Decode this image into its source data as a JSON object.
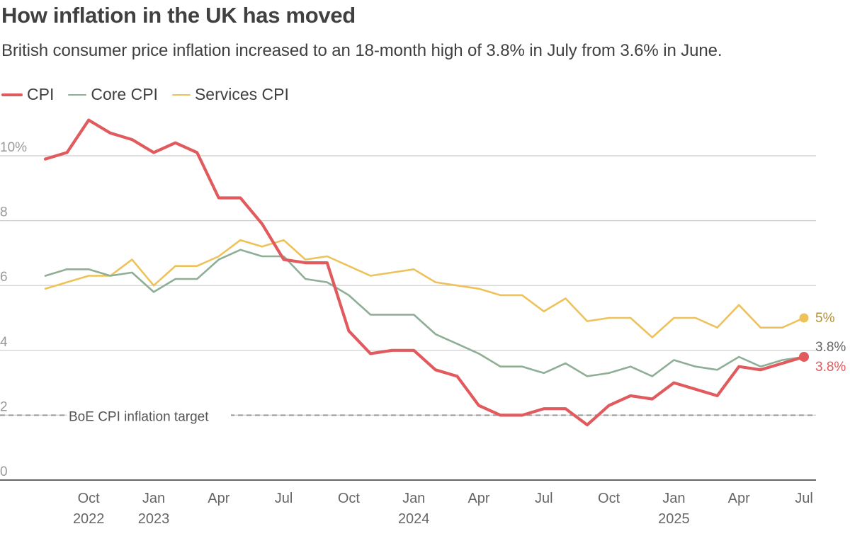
{
  "header": {
    "title": "How inflation in the UK has moved",
    "subtitle": "British consumer price inflation increased to an 18-month high of 3.8% in July from 3.6% in June."
  },
  "chart_data": {
    "type": "line",
    "title": "How inflation in the UK has moved",
    "xlabel": "",
    "ylabel": "",
    "ylim": [
      0,
      10
    ],
    "yticks": [
      0,
      2,
      4,
      6,
      8,
      10
    ],
    "ytick_labels": [
      "0",
      "2",
      "4",
      "6",
      "8",
      "10%"
    ],
    "x": [
      "2022-08",
      "2022-09",
      "2022-10",
      "2022-11",
      "2022-12",
      "2023-01",
      "2023-02",
      "2023-03",
      "2023-04",
      "2023-05",
      "2023-06",
      "2023-07",
      "2023-08",
      "2023-09",
      "2023-10",
      "2023-11",
      "2023-12",
      "2024-01",
      "2024-02",
      "2024-03",
      "2024-04",
      "2024-05",
      "2024-06",
      "2024-07",
      "2024-08",
      "2024-09",
      "2024-10",
      "2024-11",
      "2024-12",
      "2025-01",
      "2025-02",
      "2025-03",
      "2025-04",
      "2025-05",
      "2025-06",
      "2025-07"
    ],
    "x_tick_index": [
      2,
      5,
      8,
      11,
      14,
      17,
      20,
      23,
      26,
      29,
      32,
      35
    ],
    "x_tick_labels": [
      {
        "month": "Oct",
        "year": "2022"
      },
      {
        "month": "Jan",
        "year": "2023"
      },
      {
        "month": "Apr",
        "year": ""
      },
      {
        "month": "Jul",
        "year": ""
      },
      {
        "month": "Oct",
        "year": ""
      },
      {
        "month": "Jan",
        "year": "2024"
      },
      {
        "month": "Apr",
        "year": ""
      },
      {
        "month": "Jul",
        "year": ""
      },
      {
        "month": "Oct",
        "year": ""
      },
      {
        "month": "Jan",
        "year": "2025"
      },
      {
        "month": "Apr",
        "year": ""
      },
      {
        "month": "Jul",
        "year": ""
      }
    ],
    "series": [
      {
        "key": "services",
        "name": "Services CPI",
        "color": "#eec25a",
        "values": [
          5.9,
          6.1,
          6.3,
          6.3,
          6.8,
          6.0,
          6.6,
          6.6,
          6.9,
          7.4,
          7.2,
          7.4,
          6.8,
          6.9,
          6.6,
          6.3,
          6.4,
          6.5,
          6.1,
          6.0,
          5.9,
          5.7,
          5.7,
          5.2,
          5.6,
          4.9,
          5.0,
          5.0,
          4.4,
          5.0,
          5.0,
          4.7,
          5.4,
          4.7,
          4.7,
          5.0
        ],
        "end_label": "5%"
      },
      {
        "key": "core",
        "name": "Core CPI",
        "color": "#8fae96",
        "values": [
          6.3,
          6.5,
          6.5,
          6.3,
          6.4,
          5.8,
          6.2,
          6.2,
          6.8,
          7.1,
          6.9,
          6.9,
          6.2,
          6.1,
          5.7,
          5.1,
          5.1,
          5.1,
          4.5,
          4.2,
          3.9,
          3.5,
          3.5,
          3.3,
          3.6,
          3.2,
          3.3,
          3.5,
          3.2,
          3.7,
          3.5,
          3.4,
          3.8,
          3.5,
          3.7,
          3.8
        ],
        "end_label": "3.8%"
      },
      {
        "key": "cpi",
        "name": "CPI",
        "color": "#e05a5e",
        "values": [
          9.9,
          10.1,
          11.1,
          10.7,
          10.5,
          10.1,
          10.4,
          10.1,
          8.7,
          8.7,
          7.9,
          6.8,
          6.7,
          6.7,
          4.6,
          3.9,
          4.0,
          4.0,
          3.4,
          3.2,
          2.3,
          2.0,
          2.0,
          2.2,
          2.2,
          1.7,
          2.3,
          2.6,
          2.5,
          3.0,
          2.8,
          2.6,
          3.5,
          3.4,
          3.6,
          3.8
        ],
        "end_label": "3.8%"
      }
    ],
    "reference_line": {
      "value": 2,
      "label": "BoE CPI inflation target",
      "color": "#999999"
    },
    "legend": [
      "CPI",
      "Core CPI",
      "Services CPI"
    ],
    "legend_position": "top-left",
    "grid": true
  },
  "colors": {
    "cpi": "#e05a5e",
    "core": "#8fae96",
    "services": "#eec25a",
    "grid": "#cccccc",
    "axis": "#333333",
    "tick_text": "#999999"
  }
}
